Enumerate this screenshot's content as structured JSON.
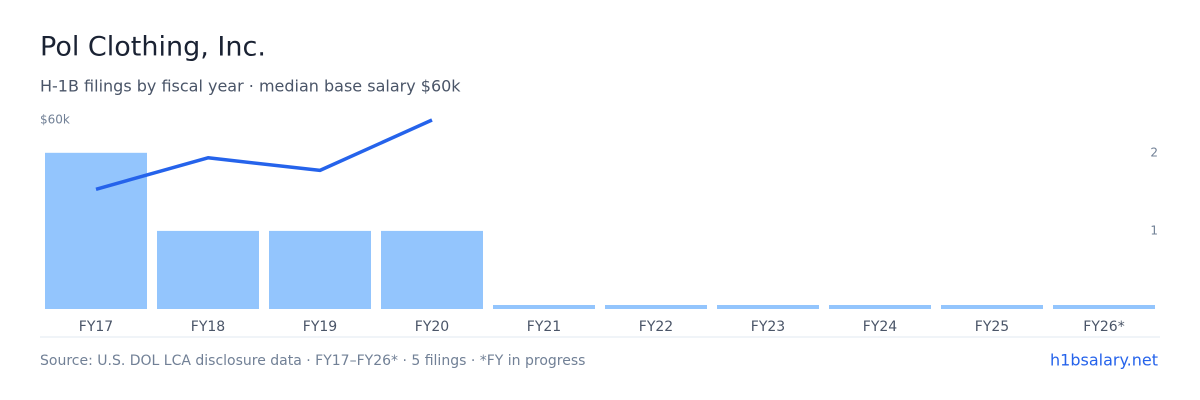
{
  "chart_data": {
    "type": "bar",
    "title": "Pol Clothing, Inc.",
    "subtitle": "H-1B filings by fiscal year · median base salary $60k",
    "categories": [
      "FY17",
      "FY18",
      "FY19",
      "FY20",
      "FY21",
      "FY22",
      "FY23",
      "FY24",
      "FY25",
      "FY26*"
    ],
    "series": [
      {
        "type": "bar",
        "axis": "y2",
        "color": "#93c5fd",
        "values": [
          2,
          1,
          1,
          1,
          0,
          0,
          0,
          0,
          0,
          0
        ]
      },
      {
        "type": "line",
        "color": "#2563eb",
        "values": [
          38000,
          48000,
          44000,
          60000,
          null,
          null,
          null,
          null,
          null,
          null
        ]
      }
    ],
    "ylim": [
      0,
      60000
    ],
    "yticks": [
      {
        "value": 60000,
        "label": "$60k"
      }
    ],
    "y2lim": [
      0,
      2.42
    ],
    "y2ticks": [
      1,
      2
    ],
    "source": "Source: U.S. DOL LCA disclosure data · FY17–FY26* · 5 filings · *FY in progress",
    "site": "h1bsalary.net"
  }
}
